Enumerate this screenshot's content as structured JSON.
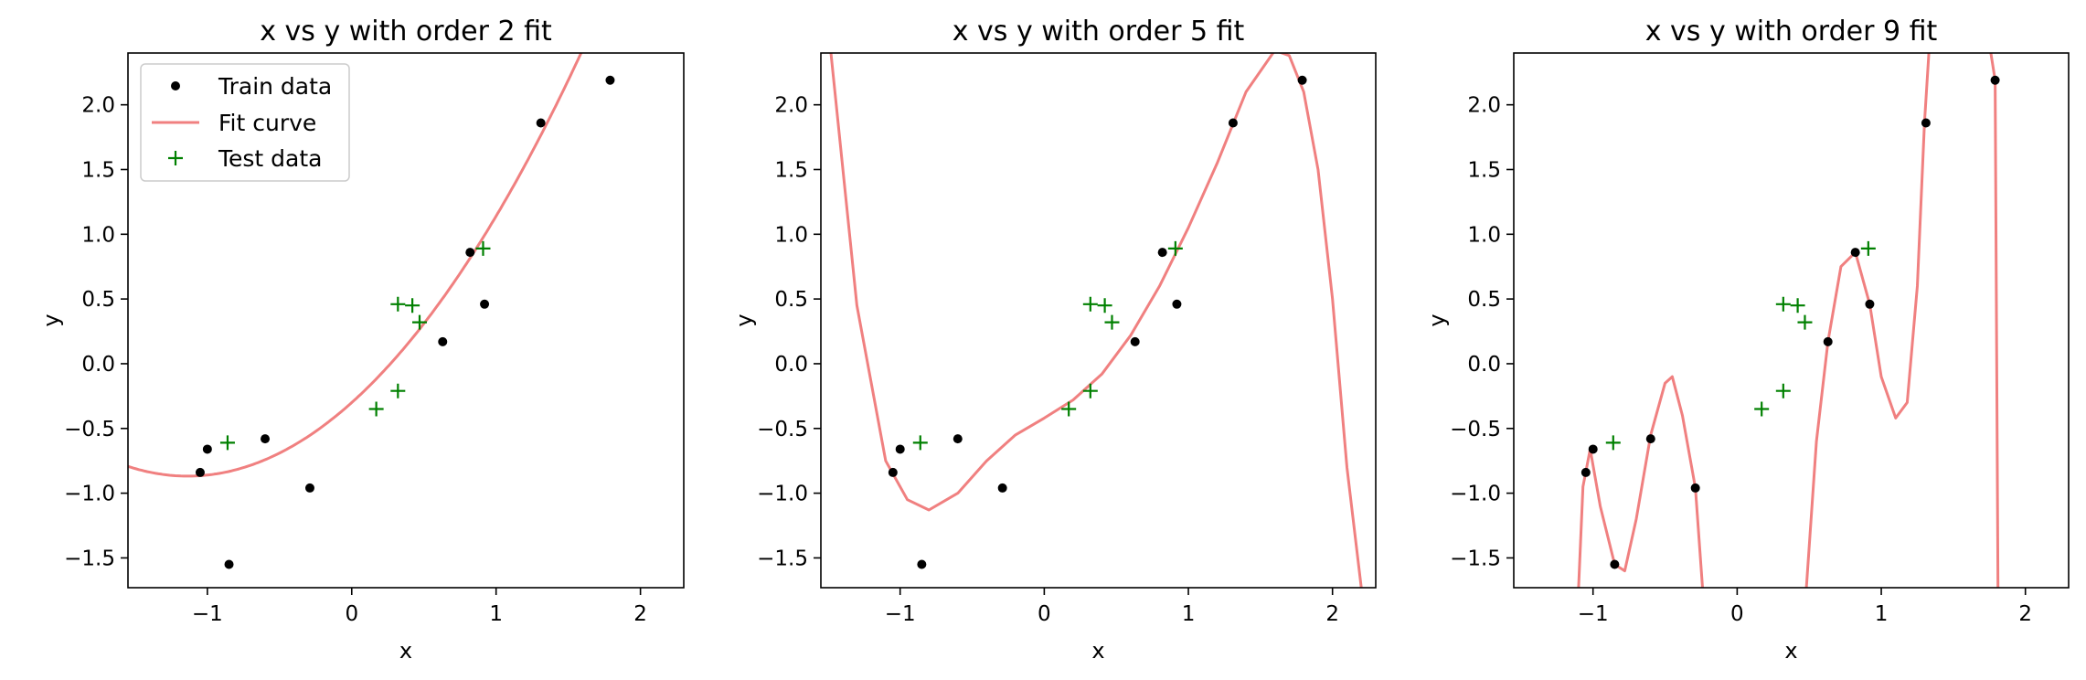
{
  "chart_data": [
    {
      "type": "scatter",
      "title": "x vs y with order 2 fit",
      "xlabel": "x",
      "ylabel": "y",
      "xlim": [
        -1.55,
        2.3
      ],
      "ylim": [
        -1.73,
        2.4
      ],
      "xticks": [
        -1,
        0,
        1,
        2
      ],
      "xtick_labels": [
        "−1",
        "0",
        "1",
        "2"
      ],
      "yticks": [
        -1.5,
        -1.0,
        -0.5,
        0.0,
        0.5,
        1.0,
        1.5,
        2.0
      ],
      "ytick_labels": [
        "−1.5",
        "−1.0",
        "−0.5",
        "0.0",
        "0.5",
        "1.0",
        "1.5",
        "2.0"
      ],
      "legend": {
        "position": "top-left",
        "entries": [
          "Train data",
          "Fit curve",
          "Test data"
        ]
      },
      "series": [
        {
          "name": "Train data",
          "kind": "points",
          "x": [
            -1.05,
            -1.0,
            -0.85,
            -0.6,
            -0.29,
            0.63,
            0.82,
            0.92,
            1.31,
            1.79
          ],
          "y": [
            -0.84,
            -0.66,
            -1.55,
            -0.58,
            -0.96,
            0.17,
            0.86,
            0.46,
            1.86,
            2.19
          ]
        },
        {
          "name": "Fit curve",
          "kind": "curve",
          "coefficients": [
            -0.3,
            1.0,
            0.44
          ],
          "curve_x": [
            -1.55,
            1.75,
            -1.55,
            2.3
          ]
        },
        {
          "name": "Test data",
          "kind": "plus",
          "x": [
            -0.86,
            0.17,
            0.32,
            0.32,
            0.42,
            0.47,
            0.91
          ],
          "y": [
            -0.61,
            -0.35,
            -0.21,
            0.46,
            0.45,
            0.32,
            0.89
          ]
        }
      ]
    },
    {
      "type": "scatter",
      "title": "x vs y with order 5 fit",
      "xlabel": "x",
      "ylabel": "y",
      "xlim": [
        -1.55,
        2.3
      ],
      "ylim": [
        -1.73,
        2.4
      ],
      "xticks": [
        -1,
        0,
        1,
        2
      ],
      "xtick_labels": [
        "−1",
        "0",
        "1",
        "2"
      ],
      "yticks": [
        -1.5,
        -1.0,
        -0.5,
        0.0,
        0.5,
        1.0,
        1.5,
        2.0
      ],
      "ytick_labels": [
        "−1.5",
        "−1.0",
        "−0.5",
        "0.0",
        "0.5",
        "1.0",
        "1.5",
        "2.0"
      ],
      "series": [
        {
          "name": "Train data",
          "kind": "points",
          "x": [
            -1.05,
            -1.0,
            -0.85,
            -0.6,
            -0.29,
            0.63,
            0.82,
            0.92,
            1.31,
            1.79
          ],
          "y": [
            -0.84,
            -0.66,
            -1.55,
            -0.58,
            -0.96,
            0.17,
            0.86,
            0.46,
            1.86,
            2.19
          ]
        },
        {
          "name": "Fit curve",
          "kind": "interp",
          "px": [
            -1.48,
            -1.3,
            -1.1,
            -0.95,
            -0.8,
            -0.6,
            -0.4,
            -0.2,
            0.0,
            0.2,
            0.4,
            0.6,
            0.8,
            1.0,
            1.2,
            1.4,
            1.6,
            1.7,
            1.8,
            1.9,
            2.0,
            2.1,
            2.2
          ],
          "py": [
            2.4,
            0.45,
            -0.75,
            -1.05,
            -1.13,
            -1.0,
            -0.75,
            -0.55,
            -0.42,
            -0.28,
            -0.08,
            0.22,
            0.6,
            1.05,
            1.55,
            2.1,
            2.42,
            2.38,
            2.1,
            1.5,
            0.5,
            -0.8,
            -1.73
          ]
        },
        {
          "name": "Test data",
          "kind": "plus",
          "x": [
            -0.86,
            0.17,
            0.32,
            0.32,
            0.42,
            0.47,
            0.91
          ],
          "y": [
            -0.61,
            -0.35,
            -0.21,
            0.46,
            0.45,
            0.32,
            0.89
          ]
        }
      ]
    },
    {
      "type": "scatter",
      "title": "x vs y with order 9 fit",
      "xlabel": "x",
      "ylabel": "y",
      "xlim": [
        -1.55,
        2.3
      ],
      "ylim": [
        -1.73,
        2.4
      ],
      "xticks": [
        -1,
        0,
        1,
        2
      ],
      "xtick_labels": [
        "−1",
        "0",
        "1",
        "2"
      ],
      "yticks": [
        -1.5,
        -1.0,
        -0.5,
        0.0,
        0.5,
        1.0,
        1.5,
        2.0
      ],
      "ytick_labels": [
        "−1.5",
        "−1.0",
        "−0.5",
        "0.0",
        "0.5",
        "1.0",
        "1.5",
        "2.0"
      ],
      "series": [
        {
          "name": "Train data",
          "kind": "points",
          "x": [
            -1.05,
            -1.0,
            -0.85,
            -0.6,
            -0.29,
            0.63,
            0.82,
            0.92,
            1.31,
            1.79
          ],
          "y": [
            -0.84,
            -0.66,
            -1.55,
            -0.58,
            -0.96,
            0.17,
            0.86,
            0.46,
            1.86,
            2.19
          ]
        },
        {
          "name": "Fit curve",
          "kind": "segments",
          "segments": [
            {
              "px": [
                -1.1,
                -1.07,
                -1.02,
                -0.95,
                -0.85,
                -0.78,
                -0.7,
                -0.6,
                -0.5,
                -0.45,
                -0.38,
                -0.29,
                -0.24
              ],
              "py": [
                -1.73,
                -0.95,
                -0.66,
                -1.1,
                -1.55,
                -1.6,
                -1.2,
                -0.55,
                -0.15,
                -0.1,
                -0.4,
                -0.96,
                -1.73
              ]
            },
            {
              "px": [
                0.48,
                0.55,
                0.63,
                0.72,
                0.82,
                0.92,
                1.0,
                1.1,
                1.18,
                1.25,
                1.3,
                1.33
              ],
              "py": [
                -1.73,
                -0.6,
                0.17,
                0.75,
                0.86,
                0.46,
                -0.1,
                -0.42,
                -0.3,
                0.6,
                1.86,
                2.4
              ]
            },
            {
              "px": [
                1.76,
                1.79,
                1.81
              ],
              "py": [
                2.4,
                2.19,
                -1.73
              ]
            }
          ]
        },
        {
          "name": "Test data",
          "kind": "plus",
          "x": [
            -0.86,
            0.17,
            0.32,
            0.32,
            0.42,
            0.47,
            0.91
          ],
          "y": [
            -0.61,
            -0.35,
            -0.21,
            0.46,
            0.45,
            0.32,
            0.89
          ]
        }
      ]
    }
  ],
  "colors": {
    "train": "#000000",
    "fit": "#f08080",
    "test": "#008000",
    "axes": "#000000",
    "background": "#ffffff"
  }
}
